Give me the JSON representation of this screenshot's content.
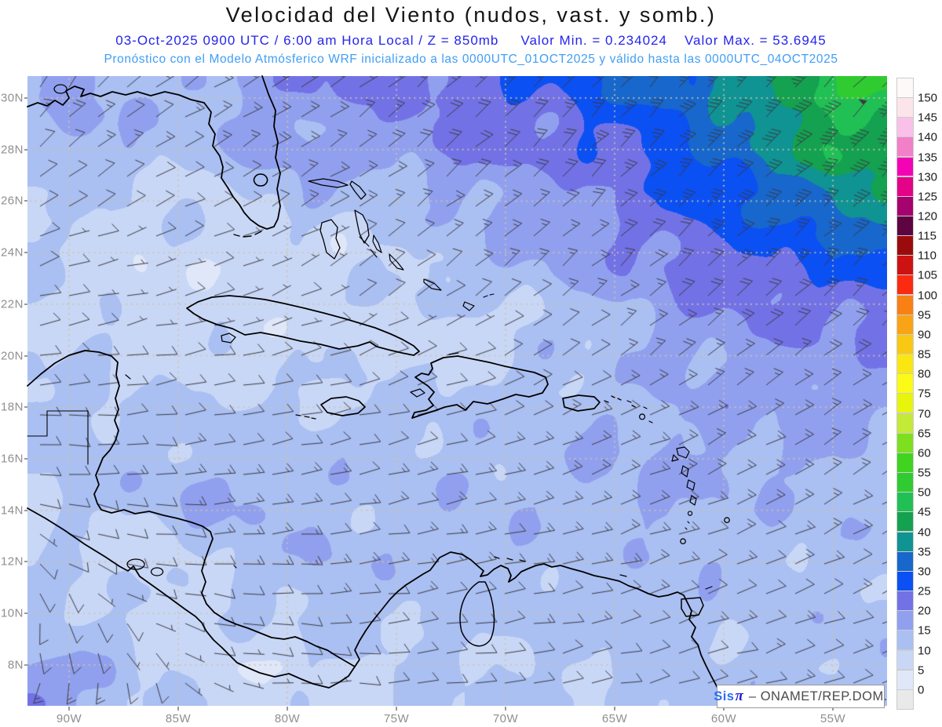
{
  "header": {
    "title": "Velocidad del Viento (nudos, vast. y somb.)",
    "line2_datetime": "03-Oct-2025  0900 UTC / 6:00 am Hora Local / Z = 850mb",
    "line2_min": "Valor Min. = 0.234024",
    "line2_max": "Valor Max. = 53.6945",
    "line3": "Pronóstico con el Modelo Atmósferico WRF inicializado a las 0000UTC_01OCT2025 y válido hasta las  0000UTC_04OCT2025"
  },
  "watermark": {
    "brand": "Sis",
    "pi": "π",
    "rest": "– ONAMET/REP.DOM."
  },
  "axes": {
    "lat_labels": [
      "30N",
      "28N",
      "26N",
      "24N",
      "22N",
      "20N",
      "18N",
      "16N",
      "14N",
      "12N",
      "10N",
      "8N"
    ],
    "lon_labels": [
      "90W",
      "85W",
      "80W",
      "75W",
      "70W",
      "65W",
      "60W",
      "55W"
    ]
  },
  "colorbar": {
    "labels": [
      0,
      5,
      10,
      15,
      20,
      25,
      30,
      35,
      40,
      45,
      50,
      55,
      60,
      65,
      70,
      75,
      80,
      85,
      90,
      95,
      100,
      105,
      110,
      115,
      120,
      125,
      130,
      135,
      140,
      145,
      150
    ],
    "colors_bottom_to_top": [
      "#e9e9e9",
      "#e0e7f9",
      "#c9d7f6",
      "#aabff2",
      "#91a0ee",
      "#7272e6",
      "#0b50f2",
      "#1767cc",
      "#0f9393",
      "#14a150",
      "#20c055",
      "#30cb30",
      "#40d320",
      "#7edf20",
      "#c3ea36",
      "#e7f50d",
      "#fbfb15",
      "#fae712",
      "#f8c814",
      "#f8a416",
      "#f88014",
      "#fb2b11",
      "#cd1212",
      "#9c0b0b",
      "#5d0441",
      "#a5036d",
      "#e30288",
      "#f403b5",
      "#f180c9",
      "#f9c1e9",
      "#fce5e9",
      "#fdf9f9"
    ]
  },
  "chart_data": {
    "type": "heatmap",
    "title": "Velocidad del Viento (nudos, vast. y somb.)",
    "units": "nudos",
    "pressure_level": "850mb",
    "valid_time": "03-Oct-2025 0900 UTC / 6:00 am Hora Local",
    "model_init": "0000UTC_01OCT2025",
    "model_end": "0000UTC_04OCT2025",
    "value_min": 0.234024,
    "value_max": 53.6945,
    "lon_range": [
      -92.0,
      -52.5
    ],
    "lat_range": [
      6.4,
      30.9
    ],
    "contour_interval_knots": 5,
    "grid_dot_color": "#cdc4aa",
    "barb_color": "#3a3a42",
    "wind_points_lon_lat_dirfrom_speedkt": [
      [
        -92,
        30.8,
        15,
        14
      ],
      [
        -89.5,
        30.6,
        30,
        16
      ],
      [
        -87,
        30.5,
        45,
        14
      ],
      [
        -84.5,
        30.6,
        55,
        15
      ],
      [
        -82,
        30.6,
        60,
        17
      ],
      [
        -79.5,
        30.7,
        55,
        20
      ],
      [
        -77,
        30.8,
        52,
        22
      ],
      [
        -74.5,
        30.6,
        48,
        23
      ],
      [
        -72,
        30.4,
        45,
        25
      ],
      [
        -69.5,
        30.6,
        42,
        27
      ],
      [
        -67,
        30.7,
        40,
        28
      ],
      [
        -64.5,
        30.5,
        41,
        31
      ],
      [
        -62,
        30.6,
        42,
        34
      ],
      [
        -59.5,
        30.5,
        43,
        38
      ],
      [
        -57,
        30.6,
        44,
        44
      ],
      [
        -55,
        30.4,
        44,
        50
      ],
      [
        -53.2,
        30.8,
        45,
        54
      ],
      [
        -91.5,
        28.4,
        35,
        12
      ],
      [
        -89.8,
        29.3,
        45,
        20
      ],
      [
        -87.5,
        28.6,
        55,
        13
      ],
      [
        -85,
        28.4,
        62,
        12
      ],
      [
        -82.5,
        29,
        60,
        18
      ],
      [
        -80.3,
        28.3,
        56,
        21
      ],
      [
        -78,
        28.6,
        54,
        17
      ],
      [
        -75.5,
        28.2,
        52,
        18
      ],
      [
        -73,
        28.6,
        48,
        21
      ],
      [
        -70.5,
        28.2,
        46,
        23
      ],
      [
        -68,
        28.4,
        45,
        22
      ],
      [
        -65.5,
        28.3,
        45,
        25
      ],
      [
        -63,
        28.5,
        45,
        28
      ],
      [
        -60.5,
        28.2,
        45,
        33
      ],
      [
        -58,
        28.4,
        45,
        38
      ],
      [
        -55.5,
        28.3,
        45,
        43
      ],
      [
        -53,
        28.6,
        45,
        47
      ],
      [
        -91,
        26.2,
        50,
        10
      ],
      [
        -88.5,
        26.4,
        60,
        8
      ],
      [
        -86,
        26,
        65,
        9
      ],
      [
        -83.8,
        26.2,
        66,
        9
      ],
      [
        -81.5,
        26.4,
        62,
        12
      ],
      [
        -79,
        26.2,
        58,
        14
      ],
      [
        -76.5,
        26.4,
        55,
        13
      ],
      [
        -74,
        26.2,
        52,
        11
      ],
      [
        -71.5,
        26,
        50,
        14
      ],
      [
        -69,
        26.3,
        48,
        17
      ],
      [
        -66.5,
        26.1,
        46,
        18
      ],
      [
        -64,
        26.2,
        45,
        22
      ],
      [
        -61.5,
        26,
        45,
        26
      ],
      [
        -59,
        26.2,
        45,
        30
      ],
      [
        -56.5,
        26,
        46,
        34
      ],
      [
        -54,
        26.2,
        46,
        38
      ],
      [
        -52.6,
        26.4,
        46,
        40
      ],
      [
        -91.3,
        23.6,
        70,
        9
      ],
      [
        -89,
        24,
        75,
        7
      ],
      [
        -86.8,
        23.7,
        78,
        5
      ],
      [
        -84.5,
        23.8,
        74,
        6
      ],
      [
        -82.3,
        24,
        70,
        5
      ],
      [
        -81.3,
        24.3,
        66,
        4
      ],
      [
        -79.5,
        23.9,
        62,
        6
      ],
      [
        -77.5,
        24.2,
        58,
        7
      ],
      [
        -75.5,
        23.7,
        55,
        9
      ],
      [
        -73.5,
        24,
        52,
        11
      ],
      [
        -71.5,
        23.8,
        50,
        13
      ],
      [
        -69.3,
        24.1,
        49,
        15
      ],
      [
        -67,
        23.8,
        48,
        16
      ],
      [
        -64.8,
        24,
        47,
        19
      ],
      [
        -62.5,
        23.7,
        47,
        22
      ],
      [
        -60,
        23.9,
        46,
        24
      ],
      [
        -57.5,
        23.7,
        47,
        26
      ],
      [
        -55,
        23.9,
        47,
        27
      ],
      [
        -52.8,
        23.8,
        48,
        28
      ],
      [
        -91.6,
        21.4,
        80,
        8
      ],
      [
        -89.3,
        21.6,
        82,
        8
      ],
      [
        -86.8,
        22.3,
        78,
        5
      ],
      [
        -84.6,
        21.5,
        78,
        7
      ],
      [
        -82.5,
        21.2,
        74,
        5
      ],
      [
        -80.6,
        20.9,
        70,
        4
      ],
      [
        -78.6,
        21.4,
        66,
        6
      ],
      [
        -76.6,
        21.6,
        62,
        6
      ],
      [
        -74.6,
        21.3,
        60,
        7
      ],
      [
        -72.6,
        21.1,
        58,
        6
      ],
      [
        -70.6,
        21.4,
        57,
        7
      ],
      [
        -68.5,
        21.6,
        55,
        9
      ],
      [
        -66.3,
        21.4,
        52,
        11
      ],
      [
        -64,
        21.6,
        50,
        14
      ],
      [
        -61.6,
        21.3,
        49,
        17
      ],
      [
        -59.3,
        21.6,
        48,
        19
      ],
      [
        -57,
        21.4,
        48,
        20
      ],
      [
        -55.3,
        20.8,
        48,
        19
      ],
      [
        -53,
        21.5,
        49,
        22
      ],
      [
        -91.6,
        19,
        86,
        9
      ],
      [
        -89.3,
        19.2,
        84,
        10
      ],
      [
        -87,
        19.4,
        83,
        9
      ],
      [
        -84.6,
        19.6,
        81,
        9
      ],
      [
        -82.3,
        19.2,
        80,
        9
      ],
      [
        -80,
        19.4,
        78,
        9
      ],
      [
        -77.6,
        19.1,
        76,
        9
      ],
      [
        -75.3,
        19.4,
        74,
        8
      ],
      [
        -73,
        19.2,
        72,
        9
      ],
      [
        -70.6,
        19.4,
        70,
        10
      ],
      [
        -68.3,
        19.1,
        67,
        11
      ],
      [
        -66,
        19.3,
        64,
        12
      ],
      [
        -63.6,
        19.2,
        61,
        13
      ],
      [
        -61.3,
        19.4,
        58,
        15
      ],
      [
        -59,
        19.2,
        55,
        16
      ],
      [
        -56.6,
        19.4,
        53,
        17
      ],
      [
        -54.3,
        19.2,
        52,
        17
      ],
      [
        -52.7,
        19.4,
        52,
        17
      ],
      [
        -91.8,
        16.8,
        92,
        11
      ],
      [
        -89.6,
        17,
        90,
        13
      ],
      [
        -87.3,
        17.2,
        88,
        13
      ],
      [
        -85,
        16.9,
        86,
        13
      ],
      [
        -82.6,
        17.2,
        84,
        12
      ],
      [
        -80.3,
        17.4,
        82,
        11
      ],
      [
        -78,
        17,
        80,
        12
      ],
      [
        -75.6,
        17.2,
        78,
        13
      ],
      [
        -73.3,
        16.9,
        76,
        12
      ],
      [
        -71,
        17.2,
        74,
        13
      ],
      [
        -68.6,
        17,
        73,
        13
      ],
      [
        -66.3,
        17.2,
        71,
        14
      ],
      [
        -64,
        16.9,
        69,
        15
      ],
      [
        -61.6,
        17.2,
        66,
        16
      ],
      [
        -59.3,
        17,
        63,
        16
      ],
      [
        -57,
        17.2,
        61,
        15
      ],
      [
        -54.6,
        16.9,
        59,
        15
      ],
      [
        -52.7,
        17.1,
        58,
        15
      ],
      [
        -91.8,
        14.6,
        96,
        10
      ],
      [
        -89.6,
        14.9,
        94,
        12
      ],
      [
        -87.3,
        15.1,
        92,
        14
      ],
      [
        -85,
        14.7,
        90,
        16
      ],
      [
        -83.6,
        14.4,
        88,
        17
      ],
      [
        -81.3,
        15,
        86,
        14
      ],
      [
        -79.6,
        14.5,
        85,
        16
      ],
      [
        -77.3,
        14.9,
        83,
        13
      ],
      [
        -75,
        14.6,
        81,
        13
      ],
      [
        -72.6,
        14.9,
        79,
        14
      ],
      [
        -70.3,
        15.1,
        77,
        13
      ],
      [
        -68,
        14.7,
        75,
        14
      ],
      [
        -65.6,
        15,
        73,
        15
      ],
      [
        -63.3,
        14.7,
        71,
        16
      ],
      [
        -61,
        15,
        68,
        15
      ],
      [
        -58.6,
        14.7,
        66,
        14
      ],
      [
        -56.3,
        15,
        64,
        13
      ],
      [
        -54,
        14.7,
        62,
        13
      ],
      [
        -52.7,
        14.9,
        61,
        13
      ],
      [
        -91.8,
        12.4,
        150,
        8
      ],
      [
        -89.6,
        12.2,
        120,
        8
      ],
      [
        -87.6,
        12.4,
        105,
        8
      ],
      [
        -85.3,
        12.1,
        98,
        8
      ],
      [
        -83,
        12.4,
        93,
        12
      ],
      [
        -81.3,
        11.9,
        91,
        14
      ],
      [
        -79.3,
        12.2,
        88,
        15
      ],
      [
        -77.3,
        12.4,
        86,
        13
      ],
      [
        -75,
        12.1,
        84,
        12
      ],
      [
        -72.6,
        12.4,
        82,
        13
      ],
      [
        -70.3,
        12.1,
        80,
        13
      ],
      [
        -68,
        12.3,
        78,
        13
      ],
      [
        -65.6,
        12.1,
        76,
        13
      ],
      [
        -63.3,
        12.3,
        74,
        13
      ],
      [
        -61,
        12.1,
        72,
        13
      ],
      [
        -58.6,
        12.3,
        70,
        12
      ],
      [
        -56.3,
        12.1,
        68,
        12
      ],
      [
        -54,
        12.3,
        66,
        12
      ],
      [
        -52.7,
        12.1,
        65,
        12
      ],
      [
        -91.8,
        9.8,
        185,
        14
      ],
      [
        -89.6,
        10.1,
        170,
        11
      ],
      [
        -87.3,
        9.9,
        150,
        8
      ],
      [
        -85.3,
        10.2,
        115,
        7
      ],
      [
        -83,
        9.9,
        98,
        8
      ],
      [
        -80.6,
        10.2,
        93,
        10
      ],
      [
        -78.3,
        9.9,
        90,
        12
      ],
      [
        -76,
        10.2,
        87,
        11
      ],
      [
        -73.6,
        9.9,
        84,
        12
      ],
      [
        -71.3,
        10.2,
        82,
        12
      ],
      [
        -69,
        9.9,
        80,
        12
      ],
      [
        -66.6,
        10.2,
        78,
        12
      ],
      [
        -64.3,
        9.9,
        76,
        12
      ],
      [
        -62,
        10.2,
        74,
        12
      ],
      [
        -59.6,
        9.9,
        72,
        12
      ],
      [
        -57.3,
        10.2,
        70,
        12
      ],
      [
        -55,
        9.9,
        68,
        12
      ],
      [
        -52.8,
        10.1,
        67,
        12
      ],
      [
        -91.8,
        6.7,
        200,
        21
      ],
      [
        -90.3,
        7.4,
        192,
        17
      ],
      [
        -88.3,
        7.2,
        183,
        14
      ],
      [
        -86.3,
        7.6,
        165,
        9
      ],
      [
        -84.3,
        7.9,
        130,
        6
      ],
      [
        -82.3,
        7.4,
        105,
        5
      ],
      [
        -80.3,
        7.7,
        96,
        6
      ],
      [
        -78.3,
        7.4,
        92,
        7
      ],
      [
        -76.3,
        7.7,
        89,
        8
      ],
      [
        -74,
        7.4,
        86,
        9
      ],
      [
        -71.6,
        7.7,
        84,
        10
      ],
      [
        -69.3,
        7.4,
        82,
        10
      ],
      [
        -67,
        7.7,
        80,
        10
      ],
      [
        -64.6,
        7.4,
        78,
        10
      ],
      [
        -62.3,
        7.7,
        76,
        11
      ],
      [
        -60,
        7.4,
        74,
        11
      ],
      [
        -57.6,
        7.7,
        72,
        12
      ],
      [
        -55.3,
        7.4,
        70,
        12
      ],
      [
        -52.8,
        7.6,
        69,
        12
      ],
      [
        -53.5,
        29.5,
        45,
        50
      ],
      [
        -54.5,
        28,
        45,
        46
      ],
      [
        -53,
        25,
        46,
        36
      ],
      [
        -59.5,
        22.5,
        47,
        22
      ],
      [
        -68,
        24.5,
        49,
        16
      ],
      [
        -72,
        27,
        49,
        19
      ],
      [
        -76,
        22.8,
        55,
        10
      ],
      [
        -78,
        24.5,
        59,
        6
      ],
      [
        -71.5,
        20.9,
        58,
        5
      ],
      [
        -66,
        20.3,
        55,
        10
      ],
      [
        -62.5,
        20,
        49,
        18
      ],
      [
        -84,
        26.8,
        67,
        7
      ],
      [
        -88,
        24,
        79,
        7
      ],
      [
        -90.5,
        22.9,
        81,
        9
      ],
      [
        -80,
        22.9,
        69,
        6
      ],
      [
        -83.5,
        20.3,
        80,
        8
      ],
      [
        -86,
        20.6,
        80,
        7
      ],
      [
        -79.3,
        19.9,
        77,
        8
      ],
      [
        -74.3,
        19.7,
        73,
        8
      ],
      [
        -70.3,
        18.2,
        73,
        10
      ],
      [
        -64.5,
        18.4,
        62,
        13
      ],
      [
        -60.5,
        18,
        57,
        17
      ],
      [
        -57,
        20,
        48,
        18
      ],
      [
        -91.5,
        17.8,
        90,
        10
      ],
      [
        -88.6,
        18.4,
        88,
        11
      ],
      [
        -90.8,
        15.4,
        94,
        11
      ],
      [
        -88.6,
        13.4,
        108,
        9
      ],
      [
        -86.5,
        11.2,
        100,
        7
      ],
      [
        -81.9,
        13.9,
        87,
        17
      ],
      [
        -77.6,
        13.4,
        84,
        12
      ],
      [
        -83.3,
        9.5,
        95,
        9
      ],
      [
        -79.8,
        8.8,
        93,
        8
      ],
      [
        -75.3,
        8.6,
        85,
        10
      ],
      [
        -70,
        8.5,
        82,
        11
      ],
      [
        -65,
        8.6,
        78,
        11
      ],
      [
        -60,
        8.6,
        74,
        11
      ],
      [
        -55.3,
        8.6,
        71,
        12
      ],
      [
        -77.9,
        11.9,
        88,
        16
      ],
      [
        -73.5,
        11.2,
        82,
        14
      ],
      [
        -69,
        11,
        79,
        13
      ]
    ]
  }
}
